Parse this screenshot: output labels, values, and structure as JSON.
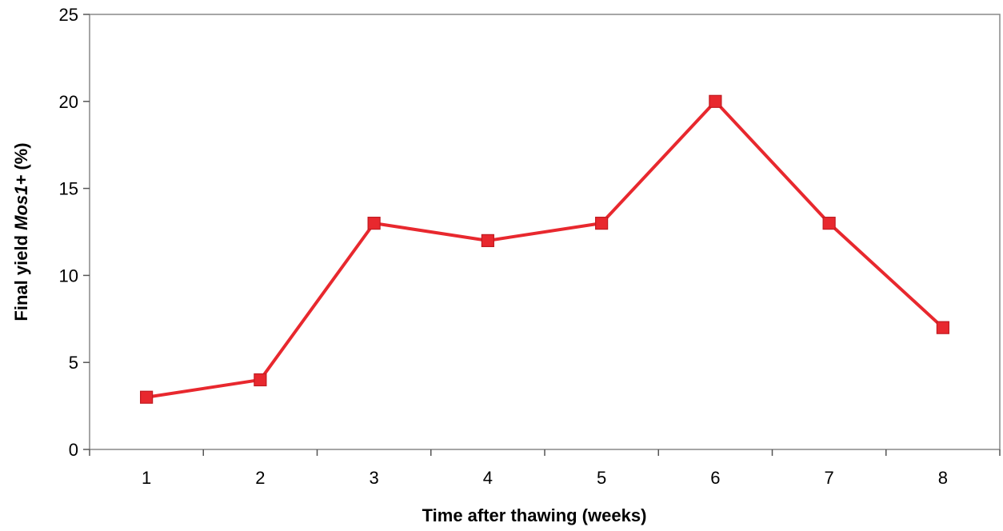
{
  "chart_data": {
    "type": "line",
    "x": [
      1,
      2,
      3,
      4,
      5,
      6,
      7,
      8
    ],
    "series": [
      {
        "values": [
          3,
          4,
          13,
          12,
          13,
          20,
          13,
          7
        ],
        "color": "#e8282e",
        "marker": "square"
      }
    ],
    "xlabel": "Time after thawing (weeks)",
    "ylabel_prefix": "Final yield ",
    "ylabel_italic": "Mos1+",
    "ylabel_suffix": " (%)",
    "xticks": [
      "1",
      "2",
      "3",
      "4",
      "5",
      "6",
      "7",
      "8"
    ],
    "yticks": [
      "0",
      "5",
      "10",
      "15",
      "20",
      "25"
    ],
    "ylim": [
      0,
      25
    ],
    "xlim": [
      0.5,
      8.5
    ],
    "grid": false,
    "legend": "none"
  }
}
